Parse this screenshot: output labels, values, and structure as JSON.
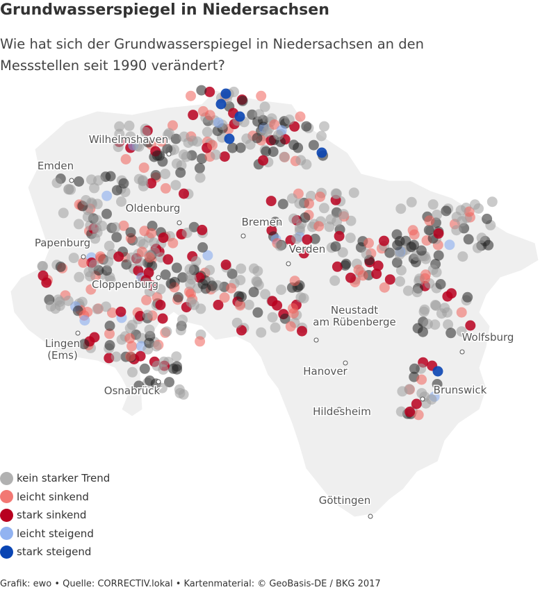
{
  "title": "Grundwasserspiegel in Niedersachsen",
  "subtitle": "Wie hat sich der Grundwasserspiegel in Niedersachsen an den Messstellen seit 1990 verändert?",
  "legend": [
    {
      "label": "kein starker Trend",
      "color": "#9e9e9e"
    },
    {
      "label": "leicht sinkend",
      "color": "#f0605a"
    },
    {
      "label": "stark sinkend",
      "color": "#b8001f"
    },
    {
      "label": "leicht steigend",
      "color": "#7fa6ef"
    },
    {
      "label": "stark steigend",
      "color": "#0a45b3"
    }
  ],
  "cities": [
    {
      "name": "Wilhelmshaven"
    },
    {
      "name": "Emden"
    },
    {
      "name": "Oldenburg"
    },
    {
      "name": "Bremen"
    },
    {
      "name": "Papenburg"
    },
    {
      "name": "Verden"
    },
    {
      "name": "Cloppenburg"
    },
    {
      "name": "Neustadt am Rübenberge"
    },
    {
      "name": "Wolfsburg"
    },
    {
      "name": "Lingen (Ems)"
    },
    {
      "name": "Hanover"
    },
    {
      "name": "Osnabrück"
    },
    {
      "name": "Brunswick"
    },
    {
      "name": "Hildesheim"
    },
    {
      "name": "Göttingen"
    }
  ],
  "footer": "Grafik: ewo • Quelle: CORRECTIV.lokal • Kartenmaterial: © GeoBasis-DE / BKG 2017"
}
